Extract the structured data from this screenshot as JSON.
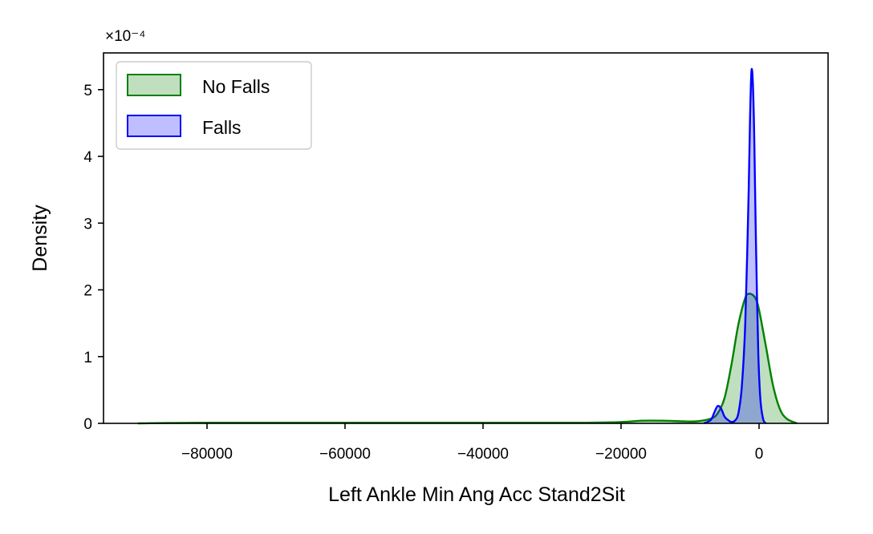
{
  "chart_data": {
    "type": "area",
    "title": "",
    "xlabel": "Left Ankle Min Ang Acc Stand2Sit",
    "ylabel": "Density",
    "y_scale_label": "×10⁻⁴",
    "y_scale_factor": 0.0001,
    "xlim": [
      -95000,
      10000
    ],
    "ylim": [
      0,
      5.55
    ],
    "xticks": [
      -80000,
      -60000,
      -40000,
      -20000,
      0
    ],
    "xtick_labels": [
      "−80000",
      "−60000",
      "−40000",
      "−20000",
      "0"
    ],
    "yticks": [
      0,
      1,
      2,
      3,
      4,
      5
    ],
    "ytick_labels": [
      "0",
      "1",
      "2",
      "3",
      "4",
      "5"
    ],
    "grid": false,
    "legend_position": "top-left",
    "series": [
      {
        "name": "No Falls",
        "line_color": "#008000",
        "fill_color": "#008000",
        "x": [
          -90000,
          -80000,
          -60000,
          -40000,
          -25000,
          -20000,
          -17000,
          -14000,
          -11000,
          -9000,
          -7000,
          -6000,
          -5000,
          -4000,
          -3000,
          -2000,
          -1500,
          -1000,
          -500,
          0,
          1000,
          2000,
          3000,
          4000,
          5500
        ],
        "y": [
          0,
          0.01,
          0.01,
          0.01,
          0.01,
          0.02,
          0.04,
          0.04,
          0.03,
          0.03,
          0.07,
          0.15,
          0.38,
          0.88,
          1.48,
          1.88,
          1.94,
          1.93,
          1.87,
          1.7,
          1.15,
          0.58,
          0.22,
          0.07,
          0
        ]
      },
      {
        "name": "Falls",
        "line_color": "#0000ff",
        "fill_color": "#0000ff",
        "x": [
          -8000,
          -7000,
          -6500,
          -6000,
          -5500,
          -5000,
          -4500,
          -4000,
          -3500,
          -3000,
          -2500,
          -2000,
          -1500,
          -1300,
          -1100,
          -900,
          -700,
          -500,
          -300,
          -100,
          200,
          600,
          1000
        ],
        "y": [
          0,
          0.05,
          0.16,
          0.26,
          0.22,
          0.1,
          0.05,
          0.02,
          0.04,
          0.15,
          0.55,
          1.5,
          3.5,
          4.6,
          5.28,
          5.1,
          4.3,
          3.0,
          1.9,
          1.0,
          0.35,
          0.06,
          0
        ]
      }
    ]
  }
}
